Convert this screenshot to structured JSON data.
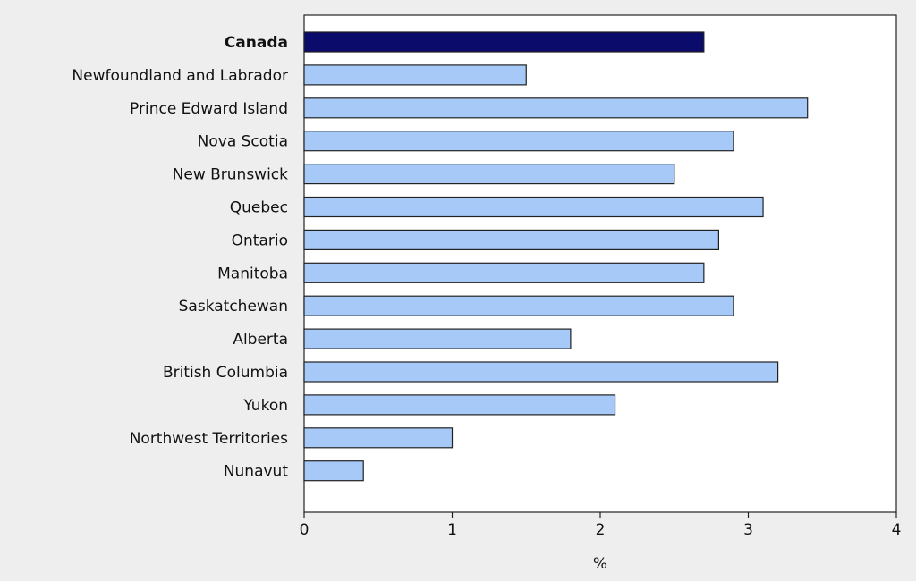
{
  "chart_data": {
    "type": "bar",
    "orientation": "horizontal",
    "title": "",
    "xlabel": "%",
    "ylabel": "",
    "categories": [
      "Canada",
      "Newfoundland and Labrador",
      "Prince Edward Island",
      "Nova Scotia",
      "New Brunswick",
      "Quebec",
      "Ontario",
      "Manitoba",
      "Saskatchewan",
      "Alberta",
      "British Columbia",
      "Yukon",
      "Northwest Territories",
      "Nunavut"
    ],
    "values": [
      2.7,
      1.5,
      3.4,
      2.9,
      2.5,
      3.1,
      2.8,
      2.7,
      2.9,
      1.8,
      3.2,
      2.1,
      1.0,
      0.4
    ],
    "highlight_category": "Canada",
    "xlim": [
      0,
      4
    ],
    "xticks": [
      "0",
      "1",
      "2",
      "3",
      "4"
    ],
    "grid": false,
    "legend": "none",
    "colors": {
      "bar": "#a6c9f7",
      "highlight_bar": "#0b0b6b",
      "bar_outline": "#222222",
      "plot_background": "#ffffff",
      "page_background": "#eeeeee"
    }
  }
}
